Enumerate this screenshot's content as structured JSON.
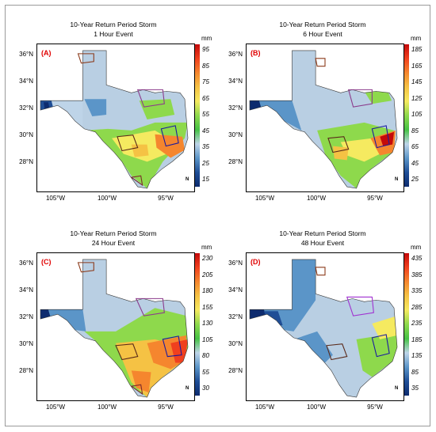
{
  "panels": [
    {
      "title": "10-Year Return Period Storm",
      "subtitle": "1 Hour Event",
      "letter": "(A)",
      "unit": "mm",
      "ticks": [
        "95",
        "85",
        "75",
        "65",
        "55",
        "45",
        "35",
        "25",
        "15"
      ],
      "base": "#b9cfe3",
      "features": [
        {
          "cls": "mid",
          "color": "#7fd14a"
        },
        {
          "cls": "orange",
          "color": "#f39a2e"
        },
        {
          "cls": "yellow",
          "color": "#f5e25a"
        },
        {
          "cls": "darkblue",
          "color": "#0d2b6e"
        }
      ]
    },
    {
      "title": "10-Year Return Period Storm",
      "subtitle": "6 Hour Event",
      "letter": "(B)",
      "unit": "mm",
      "ticks": [
        "185",
        "165",
        "145",
        "125",
        "105",
        "85",
        "65",
        "45",
        "25"
      ],
      "base": "#b9cfe3",
      "features": []
    },
    {
      "title": "10-Year Return Period Storm",
      "subtitle": "24 Hour Event",
      "letter": "(C)",
      "unit": "mm",
      "ticks": [
        "230",
        "205",
        "180",
        "155",
        "130",
        "105",
        "80",
        "55",
        "30"
      ],
      "base": "#b9cfe3",
      "features": []
    },
    {
      "title": "10-Year Return Period Storm",
      "subtitle": "48 Hour Event",
      "letter": "(D)",
      "unit": "mm",
      "ticks": [
        "435",
        "385",
        "335",
        "285",
        "235",
        "185",
        "135",
        "85",
        "35"
      ],
      "base": "#b9cfe3",
      "features": []
    }
  ],
  "axes": {
    "lat_labels": [
      "36°N",
      "34°N",
      "32°N",
      "30°N",
      "28°N"
    ],
    "lon_labels": [
      "105°W",
      "100°W",
      "95°W"
    ]
  },
  "colorscale": [
    "#c40a0a",
    "#f0401e",
    "#f5862e",
    "#f5c244",
    "#f5ea60",
    "#8ed94c",
    "#46c245",
    "#bed4e8",
    "#5b95c8",
    "#1f4e96",
    "#0d2b6e"
  ],
  "north_symbol": "N"
}
